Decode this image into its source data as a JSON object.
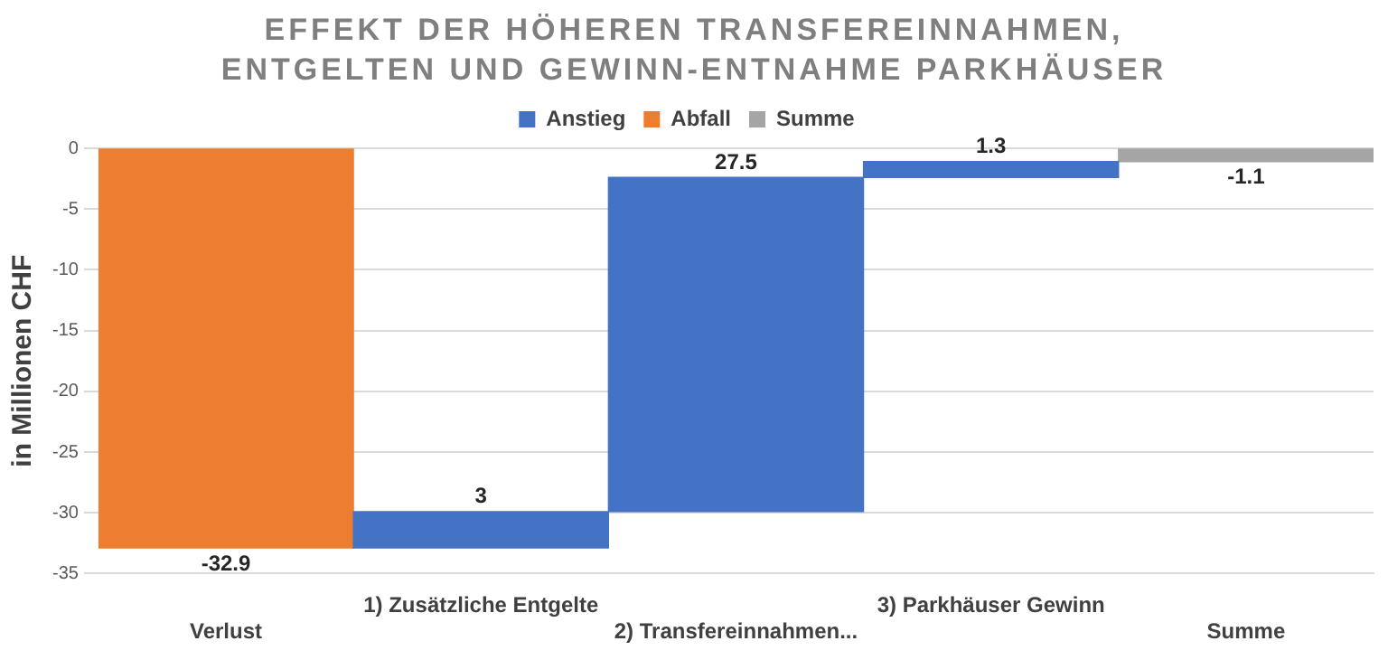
{
  "chart_data": {
    "type": "bar",
    "title": "EFFEKT DER HÖHEREN TRANSFEREINNAHMEN, ENTGELTEN UND GEWINN-ENTNAHME PARKHÄUSER",
    "ylabel": "in Millionen CHF",
    "categories": [
      "Verlust",
      "1) Zusätzliche Entgelte",
      "2) Transfereinnahmen...",
      "3) Parkhäuser Gewinn",
      "Summe"
    ],
    "series": [
      {
        "name": "Anstieg",
        "color": "#4472c4",
        "values": [
          null,
          3,
          27.5,
          1.3,
          null
        ],
        "base": [
          null,
          -32.9,
          -29.9,
          -2.4,
          null
        ]
      },
      {
        "name": "Abfall",
        "color": "#ed7d31",
        "values": [
          -32.9,
          null,
          null,
          null,
          null
        ],
        "base": [
          0,
          null,
          null,
          null,
          null
        ]
      },
      {
        "name": "Summe",
        "color": "#a5a5a5",
        "values": [
          null,
          null,
          null,
          null,
          -1.1
        ],
        "base": [
          null,
          null,
          null,
          null,
          0
        ]
      }
    ],
    "ylim": [
      -35,
      0
    ],
    "yticks": [
      0,
      -5,
      -10,
      -15,
      -20,
      -25,
      -30,
      -35
    ],
    "grid": "y",
    "legend": "top",
    "data_labels": true
  }
}
